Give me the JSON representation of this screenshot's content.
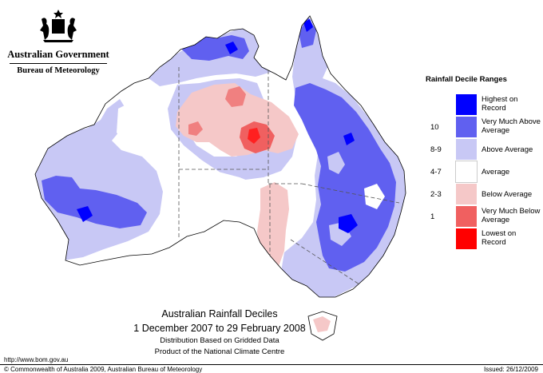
{
  "agency": {
    "government": "Australian Government",
    "bureau": "Bureau of Meteorology"
  },
  "legend": {
    "title": "Rainfall Decile Ranges",
    "items": [
      {
        "range": "",
        "label": "Highest on Record",
        "color": "#0000ff"
      },
      {
        "range": "10",
        "label": "Very Much Above Average",
        "color": "#6060f0"
      },
      {
        "range": "8-9",
        "label": "Above Average",
        "color": "#c8c8f5"
      },
      {
        "range": "4-7",
        "label": "Average",
        "color": "#ffffff"
      },
      {
        "range": "2-3",
        "label": "Below Average",
        "color": "#f5c8c8"
      },
      {
        "range": "1",
        "label": "Very Much Below Average",
        "color": "#f06060"
      },
      {
        "range": "",
        "label": "Lowest on Record",
        "color": "#ff0000"
      }
    ]
  },
  "caption": {
    "title": "Australian Rainfall Deciles",
    "period": "1 December 2007 to 29 February 2008",
    "line1": "Distribution Based on Gridded Data",
    "line2": "Product of the National Climate Centre"
  },
  "footer": {
    "url": "http://www.bom.gov.au",
    "copyright": "© Commonwealth of Australia 2009, Australian Bureau of Meteorology",
    "issued": "Issued: 26/12/2009"
  }
}
